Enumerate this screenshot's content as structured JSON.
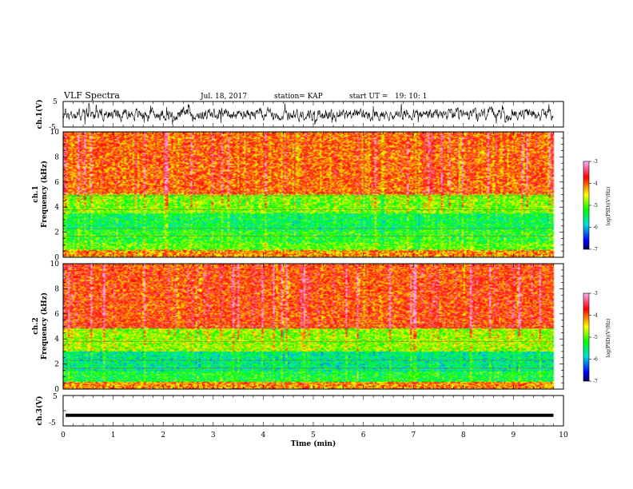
{
  "header": {
    "title": "VLF Spectra",
    "date": "Jul. 18, 2017",
    "station": "station= KAP",
    "start": "start UT =   19: 10: 1"
  },
  "panels": {
    "ch1_wave": {
      "ylabel": "ch.1(V)",
      "ytick_labels": [
        "5",
        "-5"
      ]
    },
    "ch1_spec": {
      "ylabel_line1": "ch.1",
      "ylabel_line2": "Frequency (kHz)"
    },
    "ch2_spec": {
      "ylabel_line1": "ch.2",
      "ylabel_line2": "Frequency (kHz)"
    },
    "ch3_wave": {
      "ylabel": "ch.3(V)",
      "ytick_labels": [
        "5",
        "-5"
      ]
    }
  },
  "colorbar": {
    "label": "log(PSD)(V²/Hz)",
    "tick_labels": [
      "-3",
      "-4",
      "-5",
      "-6",
      "-7"
    ]
  },
  "colors": {
    "low": "#000060",
    "blue": "#0000ff",
    "cyan": "#00e0e0",
    "green": "#00ff00",
    "yellow": "#ffff00",
    "red": "#ff0000",
    "high": "#ff80ff"
  },
  "chart_data": [
    {
      "type": "line",
      "name": "ch.1 waveform",
      "xlabel": "",
      "ylabel": "ch.1(V)",
      "xlim": [
        0,
        10
      ],
      "ylim": [
        -5,
        5
      ],
      "yticks": [
        -5,
        0,
        5
      ],
      "description_values": {
        "typical_range": [
          -3,
          2
        ]
      }
    },
    {
      "type": "heatmap",
      "name": "ch.1 spectrogram",
      "xlabel": "",
      "ylabel": "Frequency (kHz)",
      "xlim": [
        0,
        10
      ],
      "ylim": [
        0,
        10
      ],
      "x_data_end": 9.8,
      "yticks": [
        0,
        2,
        4,
        6,
        8,
        10
      ],
      "colorbar": {
        "label": "log(PSD)(V²/Hz)",
        "range": [
          -7,
          -3
        ]
      },
      "bands_khz_logpsd": [
        {
          "f": [
            0,
            0.6
          ],
          "v": -4.2
        },
        {
          "f": [
            0.6,
            1.2
          ],
          "v": -5.0
        },
        {
          "f": [
            1.2,
            2.2
          ],
          "v": -5.2
        },
        {
          "f": [
            2.2,
            3.5
          ],
          "v": -5.4
        },
        {
          "f": [
            3.5,
            5.0
          ],
          "v": -4.9
        },
        {
          "f": [
            5.0,
            10.0
          ],
          "v": -4.0
        }
      ]
    },
    {
      "type": "heatmap",
      "name": "ch.2 spectrogram",
      "xlabel": "",
      "ylabel": "Frequency (kHz)",
      "xlim": [
        0,
        10
      ],
      "ylim": [
        0,
        10
      ],
      "x_data_end": 9.8,
      "yticks": [
        0,
        2,
        4,
        6,
        8,
        10
      ],
      "colorbar": {
        "label": "log(PSD)(V²/Hz)",
        "range": [
          -7,
          -3
        ]
      },
      "bands_khz_logpsd": [
        {
          "f": [
            0,
            0.6
          ],
          "v": -4.2
        },
        {
          "f": [
            0.6,
            1.4
          ],
          "v": -5.3
        },
        {
          "f": [
            1.4,
            3.0
          ],
          "v": -5.6
        },
        {
          "f": [
            3.0,
            4.8
          ],
          "v": -4.8
        },
        {
          "f": [
            4.8,
            10.0
          ],
          "v": -3.9
        }
      ]
    },
    {
      "type": "line",
      "name": "ch.3 waveform",
      "xlabel": "Time (min)",
      "ylabel": "ch.3(V)",
      "xlim": [
        0,
        10
      ],
      "ylim": [
        -5,
        5
      ],
      "x": [
        0.05,
        9.8
      ],
      "y": [
        -1.5,
        -1.5
      ],
      "xticks": [
        0,
        1,
        2,
        3,
        4,
        5,
        6,
        7,
        8,
        9,
        10
      ]
    }
  ]
}
